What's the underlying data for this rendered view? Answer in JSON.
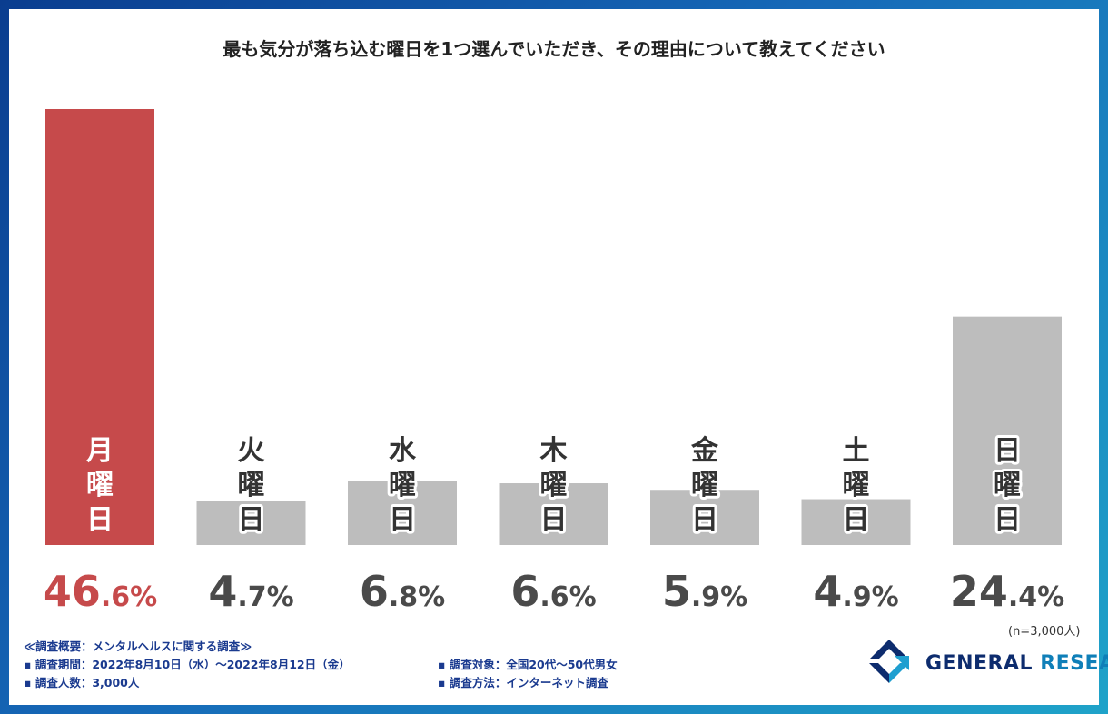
{
  "chart_data": {
    "type": "bar",
    "title": "最も気分が落ち込む曜日を1つ選んでいただき、その理由について教えてください",
    "categories": [
      "月曜日",
      "火曜日",
      "水曜日",
      "木曜日",
      "金曜日",
      "土曜日",
      "日曜日"
    ],
    "values": [
      46.6,
      4.7,
      6.8,
      6.6,
      5.9,
      4.9,
      24.4
    ],
    "value_labels_int": [
      "46",
      "4",
      "6",
      "6",
      "5",
      "4",
      "24"
    ],
    "value_labels_dec": [
      ".6%",
      ".7%",
      ".8%",
      ".6%",
      ".9%",
      ".9%",
      ".4%"
    ],
    "highlight_index": 0,
    "ylim": [
      0,
      46.6
    ],
    "xlabel": "",
    "ylabel": ""
  },
  "colors": {
    "highlight": "#c64a4b",
    "bar": "#bdbdbd",
    "highlight_text": "#c64a4b",
    "text": "#4a4a4a"
  },
  "sample_note": "(n=3,000人)",
  "survey": {
    "heading": "≪調査概要：メンタルヘルスに関する調査≫",
    "period": "▪ 調査期間：2022年8月10日（水）〜2022年8月12日（金）",
    "count": "▪ 調査人数：3,000人",
    "target": "▪ 調査対象：全国20代〜50代男女",
    "method": "▪ 調査方法：インターネット調査"
  },
  "logo": {
    "word1": "GENERAL",
    "word2": "RESEARCH",
    "icon": "general-research-logo-icon"
  }
}
